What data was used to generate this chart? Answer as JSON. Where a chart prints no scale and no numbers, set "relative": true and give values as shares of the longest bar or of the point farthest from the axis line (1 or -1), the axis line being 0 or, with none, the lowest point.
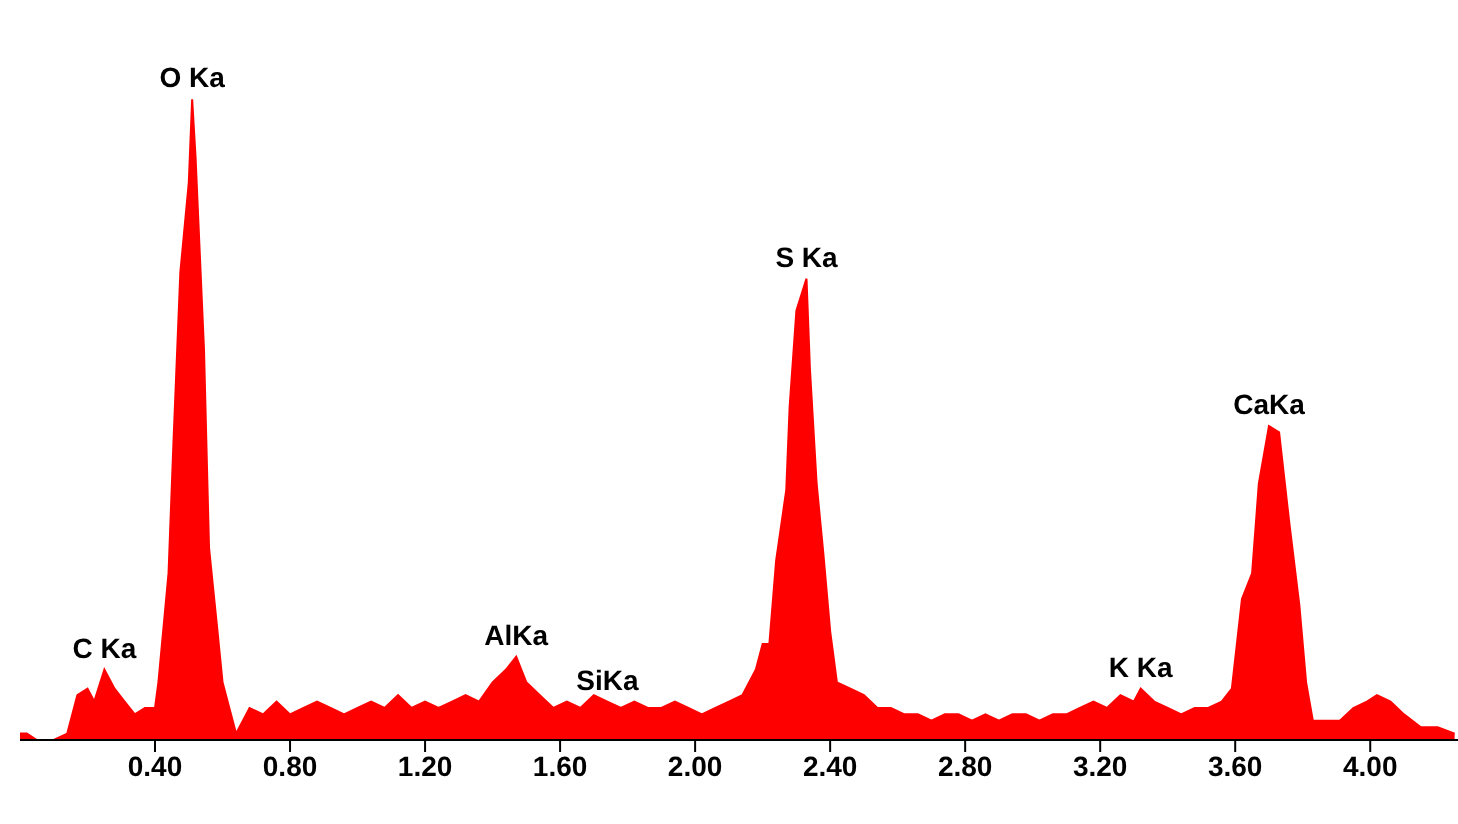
{
  "chart_data": {
    "type": "area",
    "relative": true,
    "color": "#ff0000",
    "x": [
      0.0,
      0.02,
      0.05,
      0.1,
      0.14,
      0.17,
      0.2,
      0.22,
      0.25,
      0.28,
      0.31,
      0.34,
      0.37,
      0.4,
      0.41,
      0.44,
      0.455,
      0.475,
      0.5,
      0.51,
      0.52,
      0.545,
      0.56,
      0.585,
      0.6,
      0.64,
      0.68,
      0.72,
      0.76,
      0.8,
      0.84,
      0.88,
      0.92,
      0.96,
      1.0,
      1.04,
      1.08,
      1.12,
      1.16,
      1.2,
      1.24,
      1.28,
      1.32,
      1.36,
      1.4,
      1.44,
      1.47,
      1.5,
      1.54,
      1.58,
      1.62,
      1.66,
      1.7,
      1.74,
      1.78,
      1.82,
      1.86,
      1.9,
      1.94,
      1.98,
      2.02,
      2.06,
      2.1,
      2.14,
      2.18,
      2.2,
      2.22,
      2.24,
      2.27,
      2.28,
      2.3,
      2.33,
      2.34,
      2.36,
      2.38,
      2.4,
      2.42,
      2.46,
      2.5,
      2.54,
      2.58,
      2.62,
      2.66,
      2.7,
      2.74,
      2.78,
      2.82,
      2.86,
      2.9,
      2.94,
      2.98,
      3.02,
      3.06,
      3.1,
      3.14,
      3.18,
      3.22,
      3.26,
      3.3,
      3.32,
      3.36,
      3.4,
      3.44,
      3.48,
      3.52,
      3.56,
      3.59,
      3.62,
      3.65,
      3.67,
      3.7,
      3.73,
      3.76,
      3.79,
      3.81,
      3.83,
      3.87,
      3.91,
      3.95,
      3.99,
      4.02,
      4.06,
      4.1,
      4.15,
      4.2,
      4.25
    ],
    "values": [
      0.01,
      0.01,
      0,
      0,
      0.01,
      0.07,
      0.08,
      0.06,
      0.11,
      0.08,
      0.06,
      0.04,
      0.05,
      0.05,
      0.09,
      0.26,
      0.47,
      0.73,
      0.87,
      1.0,
      0.91,
      0.61,
      0.3,
      0.17,
      0.09,
      0.01,
      0.05,
      0.04,
      0.06,
      0.04,
      0.05,
      0.06,
      0.05,
      0.04,
      0.05,
      0.06,
      0.05,
      0.07,
      0.05,
      0.06,
      0.05,
      0.06,
      0.07,
      0.06,
      0.09,
      0.11,
      0.13,
      0.09,
      0.07,
      0.05,
      0.06,
      0.05,
      0.07,
      0.06,
      0.05,
      0.06,
      0.05,
      0.05,
      0.06,
      0.05,
      0.04,
      0.05,
      0.06,
      0.07,
      0.11,
      0.15,
      0.15,
      0.28,
      0.39,
      0.52,
      0.67,
      0.72,
      0.58,
      0.4,
      0.29,
      0.17,
      0.09,
      0.08,
      0.07,
      0.05,
      0.05,
      0.04,
      0.04,
      0.03,
      0.04,
      0.04,
      0.03,
      0.04,
      0.03,
      0.04,
      0.04,
      0.03,
      0.04,
      0.04,
      0.05,
      0.06,
      0.05,
      0.07,
      0.06,
      0.08,
      0.06,
      0.05,
      0.04,
      0.05,
      0.05,
      0.06,
      0.08,
      0.22,
      0.26,
      0.4,
      0.49,
      0.48,
      0.34,
      0.21,
      0.09,
      0.03,
      0.03,
      0.03,
      0.05,
      0.06,
      0.07,
      0.06,
      0.04,
      0.02,
      0.02,
      0.01
    ],
    "xlim": [
      0,
      4.26
    ],
    "xticks": [
      {
        "value": 0.4,
        "label": "0.40"
      },
      {
        "value": 0.8,
        "label": "0.80"
      },
      {
        "value": 1.2,
        "label": "1.20"
      },
      {
        "value": 1.6,
        "label": "1.60"
      },
      {
        "value": 2.0,
        "label": "2.00"
      },
      {
        "value": 2.4,
        "label": "2.40"
      },
      {
        "value": 2.8,
        "label": "2.80"
      },
      {
        "value": 3.2,
        "label": "3.20"
      },
      {
        "value": 3.6,
        "label": "3.60"
      },
      {
        "value": 4.0,
        "label": "4.00"
      }
    ],
    "tick_labels": "x",
    "grid": false,
    "legend": false,
    "annotations": [
      {
        "text": "C Ka",
        "x": 0.25,
        "y": 0.11
      },
      {
        "text": "O Ka",
        "x": 0.51,
        "y": 1.0
      },
      {
        "text": "AlKa",
        "x": 1.47,
        "y": 0.13
      },
      {
        "text": "SiKa",
        "x": 1.74,
        "y": 0.06
      },
      {
        "text": "S Ka",
        "x": 2.33,
        "y": 0.72
      },
      {
        "text": "K Ka",
        "x": 3.32,
        "y": 0.08
      },
      {
        "text": "CaKa",
        "x": 3.7,
        "y": 0.49
      }
    ]
  }
}
